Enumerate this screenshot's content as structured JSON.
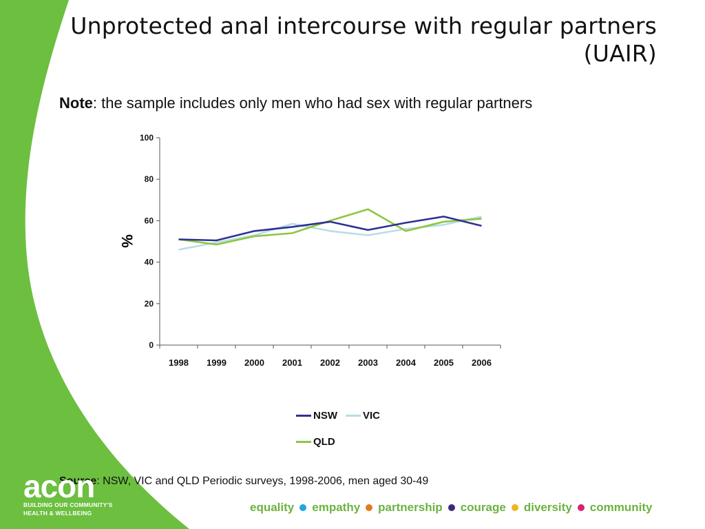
{
  "slide": {
    "title": "Unprotected anal intercourse with regular partners (UAIR)",
    "note_label": "Note",
    "note_text": ": the sample includes only men who had sex with regular partners",
    "source_label": "Source",
    "source_text": ": NSW, VIC and QLD Periodic surveys, 1998-2006, men aged 30-49"
  },
  "logo": {
    "mark": "acon",
    "tagline_1": "BUILDING OUR COMMUNITY'S",
    "tagline_2": "HEALTH & WELLBEING"
  },
  "values_bar": {
    "items": [
      {
        "word": "equality",
        "dot_color": "#1ea7e1"
      },
      {
        "word": "empathy",
        "dot_color": "#e87722"
      },
      {
        "word": "partnership",
        "dot_color": "#3b2a80"
      },
      {
        "word": "courage",
        "dot_color": "#f0b323"
      },
      {
        "word": "diversity",
        "dot_color": "#d6246e"
      },
      {
        "word": "community",
        "dot_color": null
      }
    ]
  },
  "theme": {
    "brand_green": "#6cbf3f",
    "text_green": "#6cb33f"
  },
  "chart_data": {
    "type": "line",
    "title": "",
    "xlabel": "",
    "ylabel": "%",
    "ylim": [
      0,
      100
    ],
    "yticks": [
      0,
      20,
      40,
      60,
      80,
      100
    ],
    "categories": [
      "1998",
      "1999",
      "2000",
      "2001",
      "2002",
      "2003",
      "2004",
      "2005",
      "2006"
    ],
    "grid": false,
    "legend_position": "bottom",
    "series": [
      {
        "name": "NSW",
        "color": "#2e3192",
        "values": [
          51,
          50.5,
          55,
          57,
          59.5,
          55.5,
          59,
          62,
          57.5
        ]
      },
      {
        "name": "VIC",
        "color": "#b9dde6",
        "values": [
          46,
          49.5,
          53,
          58.5,
          55,
          53,
          56,
          58,
          62
        ]
      },
      {
        "name": "QLD",
        "color": "#8dc63f",
        "values": [
          51,
          48.5,
          52.5,
          54,
          60,
          65.5,
          55,
          59.5,
          61
        ]
      }
    ]
  }
}
